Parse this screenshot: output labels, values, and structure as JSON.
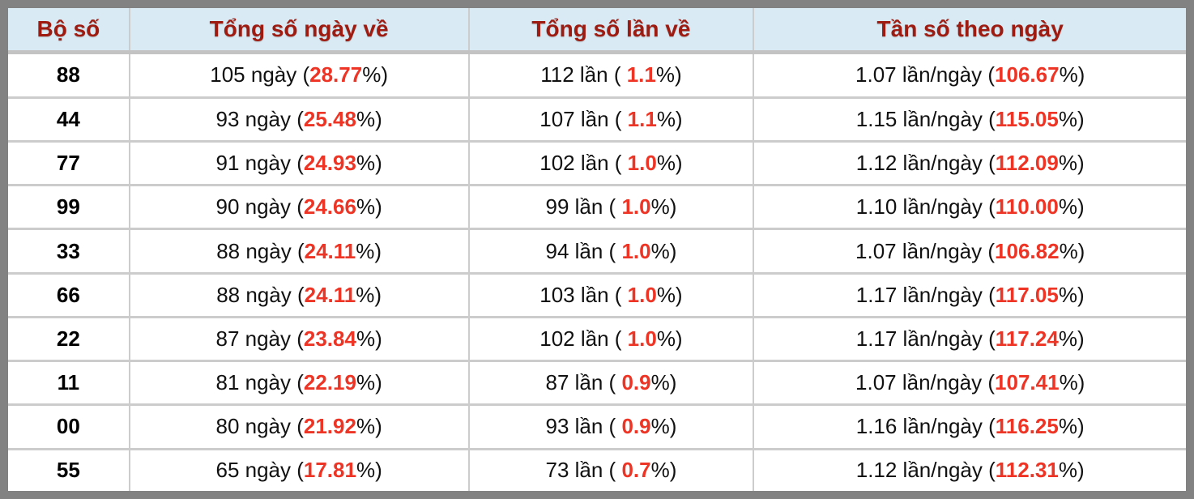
{
  "table": {
    "headers": [
      {
        "id": "boso",
        "label": "Bộ số"
      },
      {
        "id": "ngay",
        "label": "Tổng số ngày về"
      },
      {
        "id": "lan",
        "label": "Tổng số lần về"
      },
      {
        "id": "tanso",
        "label": "Tần số theo ngày"
      }
    ],
    "rows": [
      {
        "boso": "88",
        "ngay": {
          "pre": "105 ngày (",
          "hl": "28.77",
          "post": "%)"
        },
        "lan": {
          "pre": "112 lần ( ",
          "hl": "1.1",
          "post": "%)"
        },
        "tanso": {
          "pre": "1.07 lần/ngày (",
          "hl": "106.67",
          "post": "%)"
        }
      },
      {
        "boso": "44",
        "ngay": {
          "pre": "93 ngày (",
          "hl": "25.48",
          "post": "%)"
        },
        "lan": {
          "pre": "107 lần ( ",
          "hl": "1.1",
          "post": "%)"
        },
        "tanso": {
          "pre": "1.15 lần/ngày (",
          "hl": "115.05",
          "post": "%)"
        }
      },
      {
        "boso": "77",
        "ngay": {
          "pre": "91 ngày (",
          "hl": "24.93",
          "post": "%)"
        },
        "lan": {
          "pre": "102 lần ( ",
          "hl": "1.0",
          "post": "%)"
        },
        "tanso": {
          "pre": "1.12 lần/ngày (",
          "hl": "112.09",
          "post": "%)"
        }
      },
      {
        "boso": "99",
        "ngay": {
          "pre": "90 ngày (",
          "hl": "24.66",
          "post": "%)"
        },
        "lan": {
          "pre": "99 lần ( ",
          "hl": "1.0",
          "post": "%)"
        },
        "tanso": {
          "pre": "1.10 lần/ngày (",
          "hl": "110.00",
          "post": "%)"
        }
      },
      {
        "boso": "33",
        "ngay": {
          "pre": "88 ngày (",
          "hl": "24.11",
          "post": "%)"
        },
        "lan": {
          "pre": "94 lần ( ",
          "hl": "1.0",
          "post": "%)"
        },
        "tanso": {
          "pre": "1.07 lần/ngày (",
          "hl": "106.82",
          "post": "%)"
        }
      },
      {
        "boso": "66",
        "ngay": {
          "pre": "88 ngày (",
          "hl": "24.11",
          "post": "%)"
        },
        "lan": {
          "pre": "103 lần ( ",
          "hl": "1.0",
          "post": "%)"
        },
        "tanso": {
          "pre": "1.17 lần/ngày (",
          "hl": "117.05",
          "post": "%)"
        }
      },
      {
        "boso": "22",
        "ngay": {
          "pre": "87 ngày (",
          "hl": "23.84",
          "post": "%)"
        },
        "lan": {
          "pre": "102 lần ( ",
          "hl": "1.0",
          "post": "%)"
        },
        "tanso": {
          "pre": "1.17 lần/ngày (",
          "hl": "117.24",
          "post": "%)"
        }
      },
      {
        "boso": "11",
        "ngay": {
          "pre": "81 ngày (",
          "hl": "22.19",
          "post": "%)"
        },
        "lan": {
          "pre": "87 lần ( ",
          "hl": "0.9",
          "post": "%)"
        },
        "tanso": {
          "pre": "1.07 lần/ngày (",
          "hl": "107.41",
          "post": "%)"
        }
      },
      {
        "boso": "00",
        "ngay": {
          "pre": "80 ngày (",
          "hl": "21.92",
          "post": "%)"
        },
        "lan": {
          "pre": "93 lần ( ",
          "hl": "0.9",
          "post": "%)"
        },
        "tanso": {
          "pre": "1.16 lần/ngày (",
          "hl": "116.25",
          "post": "%)"
        }
      },
      {
        "boso": "55",
        "ngay": {
          "pre": "65 ngày (",
          "hl": "17.81",
          "post": "%)"
        },
        "lan": {
          "pre": "73 lần ( ",
          "hl": "0.7",
          "post": "%)"
        },
        "tanso": {
          "pre": "1.12 lần/ngày (",
          "hl": "112.31",
          "post": "%)"
        }
      }
    ]
  },
  "colors": {
    "header_bg": "#d9eaf4",
    "header_text": "#9e1b11",
    "highlight_red": "#ee3424",
    "frame_gray": "#828282",
    "grid_line": "#cccccc"
  }
}
